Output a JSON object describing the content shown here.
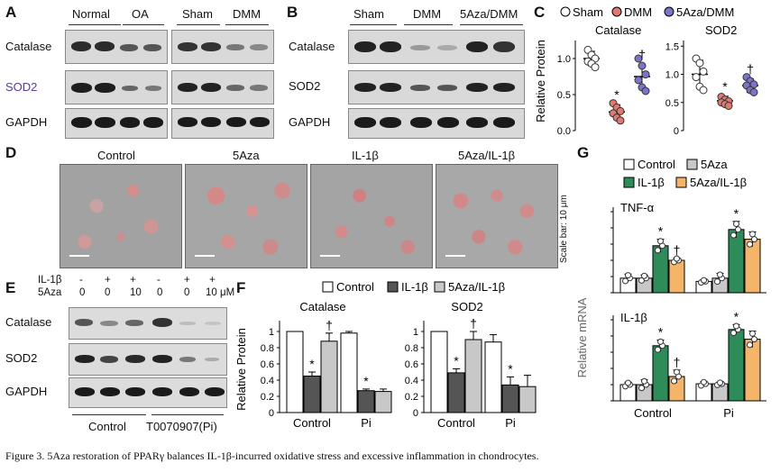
{
  "panels": {
    "A": {
      "letter": "A",
      "groups": [
        "Normal",
        "OA",
        "Sham",
        "DMM"
      ],
      "rows": [
        "Catalase",
        "SOD2",
        "GAPDH"
      ]
    },
    "B": {
      "letter": "B",
      "groups": [
        "Sham",
        "DMM",
        "5Aza/DMM"
      ],
      "rows": [
        "Catalase",
        "SOD2",
        "GAPDH"
      ]
    },
    "C": {
      "letter": "C",
      "legend": [
        "Sham",
        "DMM",
        "5Aza/DMM"
      ],
      "ylabel": "Relative Protein",
      "subplots": [
        "Catalase",
        "SOD2"
      ]
    },
    "D": {
      "letter": "D",
      "conditions": [
        "Control",
        "5Aza",
        "IL-1β",
        "5Aza/IL-1β"
      ],
      "scale_note": "Scale bar:  10 μm"
    },
    "E": {
      "letter": "E",
      "il1b_label": "IL-1β",
      "aza_label": "5Aza",
      "il1b_marks": [
        "-",
        "+",
        "+",
        "-",
        "+",
        "+"
      ],
      "aza_doses": [
        "0",
        "0",
        "10",
        "0",
        "0",
        "10 μM"
      ],
      "rows": [
        "Catalase",
        "SOD2",
        "GAPDH"
      ],
      "groups": [
        "Control",
        "T0070907(Pi)"
      ]
    },
    "F": {
      "letter": "F",
      "legend": [
        "Control",
        "IL-1β",
        "5Aza/IL-1β"
      ],
      "ylabel": "Relative Protein",
      "subplots": [
        "Catalase",
        "SOD2"
      ],
      "xcats": [
        "Control",
        "Pi"
      ]
    },
    "G": {
      "letter": "G",
      "legend": [
        "Control",
        "5Aza",
        "IL-1β",
        "5Aza/IL-1β"
      ],
      "ylabel": "Relative mRNA",
      "subplots": [
        "TNF-α",
        "IL-1β"
      ],
      "xcats": [
        "Control",
        "Pi"
      ]
    }
  },
  "colors": {
    "sham": "#ffffff",
    "dmm": "#e07a70",
    "aza_dmm": "#7b74c9",
    "control": "#ffffff",
    "il1b": "#555555",
    "aza_il1b": "#c8c8c8",
    "g_5aza": "#c8c8c8",
    "g_il1b": "#2e8c5a",
    "g_aza_il1b": "#f4b56a"
  },
  "chart_data": [
    {
      "type": "scatter",
      "title": "Catalase",
      "ylabel": "Relative Protein",
      "categories": [
        "Sham",
        "DMM",
        "5Aza/DMM"
      ],
      "ylim": [
        0,
        1.25
      ],
      "yticks": [
        "0.0",
        "0.5",
        "1.0"
      ],
      "means": [
        1.0,
        0.26,
        0.75
      ],
      "sd": [
        0.1,
        0.1,
        0.17
      ],
      "points": [
        [
          1.12,
          1.05,
          1.0,
          0.96,
          0.93,
          0.88
        ],
        [
          0.38,
          0.32,
          0.27,
          0.24,
          0.18,
          0.14
        ],
        [
          1.0,
          0.9,
          0.78,
          0.7,
          0.6,
          0.55
        ]
      ],
      "marks": [
        "",
        "*",
        "†"
      ]
    },
    {
      "type": "scatter",
      "title": "SOD2",
      "ylabel": "",
      "categories": [
        "Sham",
        "DMM",
        "5Aza/DMM"
      ],
      "ylim": [
        0,
        1.6
      ],
      "yticks": [
        "0",
        "0.5",
        "1.0",
        "1.5"
      ],
      "means": [
        1.0,
        0.53,
        0.8
      ],
      "sd": [
        0.25,
        0.08,
        0.12
      ],
      "points": [
        [
          1.28,
          1.2,
          1.05,
          0.95,
          0.78,
          0.72
        ],
        [
          0.6,
          0.55,
          0.52,
          0.5,
          0.47,
          0.44
        ],
        [
          0.95,
          0.88,
          0.82,
          0.8,
          0.72,
          0.68
        ]
      ],
      "marks": [
        "",
        "*",
        "†"
      ]
    },
    {
      "type": "bar",
      "title": "Catalase",
      "categories": [
        "Control",
        "Pi"
      ],
      "series": [
        {
          "name": "Control",
          "values": [
            1.0,
            0.98
          ]
        },
        {
          "name": "IL-1β",
          "values": [
            0.45,
            0.27
          ]
        },
        {
          "name": "5Aza/IL-1β",
          "values": [
            0.88,
            0.26
          ]
        }
      ],
      "errors": [
        [
          0,
          0.02
        ],
        [
          0.05,
          0.02
        ],
        [
          0.1,
          0.03
        ]
      ],
      "marks": [
        [
          "",
          ""
        ],
        [
          "*",
          "*"
        ],
        [
          "†",
          ""
        ]
      ],
      "ylim": [
        0,
        1.1
      ],
      "yticks": [
        "0",
        "0.2",
        "0.4",
        "0.6",
        "0.8",
        "1"
      ]
    },
    {
      "type": "bar",
      "title": "SOD2",
      "categories": [
        "Control",
        "Pi"
      ],
      "series": [
        {
          "name": "Control",
          "values": [
            1.0,
            0.87
          ]
        },
        {
          "name": "IL-1β",
          "values": [
            0.49,
            0.34
          ]
        },
        {
          "name": "5Aza/IL-1β",
          "values": [
            0.9,
            0.32
          ]
        }
      ],
      "errors": [
        [
          0,
          0.09
        ],
        [
          0.05,
          0.1
        ],
        [
          0.1,
          0.14
        ]
      ],
      "marks": [
        [
          "",
          ""
        ],
        [
          "*",
          "*"
        ],
        [
          "†",
          ""
        ]
      ],
      "ylim": [
        0,
        1.1
      ],
      "yticks": [
        "0",
        "0.2",
        "0.4",
        "0.6",
        "0.8",
        "1"
      ]
    },
    {
      "type": "bar",
      "title": "TNF-α",
      "categories": [
        "Control",
        "Pi"
      ],
      "series": [
        {
          "name": "Control",
          "values": [
            0.9,
            0.7
          ]
        },
        {
          "name": "5Aza",
          "values": [
            0.9,
            0.9
          ]
        },
        {
          "name": "IL-1β",
          "values": [
            2.9,
            3.9
          ]
        },
        {
          "name": "5Aza/IL-1β",
          "values": [
            2.0,
            3.3
          ]
        }
      ],
      "errors": [
        [
          0.25,
          0.1
        ],
        [
          0.2,
          0.3
        ],
        [
          0.4,
          0.5
        ],
        [
          0.15,
          0.45
        ]
      ],
      "marks": [
        [
          "",
          ""
        ],
        [
          "",
          ""
        ],
        [
          "*",
          "*"
        ],
        [
          "†",
          ""
        ]
      ],
      "ylim": [
        0,
        5
      ]
    },
    {
      "type": "bar",
      "title": "IL-1β",
      "categories": [
        "Control",
        "Pi"
      ],
      "series": [
        {
          "name": "Control",
          "values": [
            1.0,
            1.05
          ]
        },
        {
          "name": "5Aza",
          "values": [
            1.0,
            1.05
          ]
        },
        {
          "name": "IL-1β",
          "values": [
            3.4,
            4.4
          ]
        },
        {
          "name": "5Aza/IL-1β",
          "values": [
            1.5,
            3.8
          ]
        }
      ],
      "errors": [
        [
          0.15,
          0.15
        ],
        [
          0.3,
          0.1
        ],
        [
          0.35,
          0.3
        ],
        [
          0.4,
          0.5
        ]
      ],
      "marks": [
        [
          "",
          ""
        ],
        [
          "",
          ""
        ],
        [
          "*",
          "*"
        ],
        [
          "†",
          ""
        ]
      ],
      "ylim": [
        0,
        5
      ]
    }
  ],
  "caption": "Figure 3. 5Aza restoration of PPARγ balances IL-1β-incurred oxidative stress and excessive inflammation in chondrocytes."
}
